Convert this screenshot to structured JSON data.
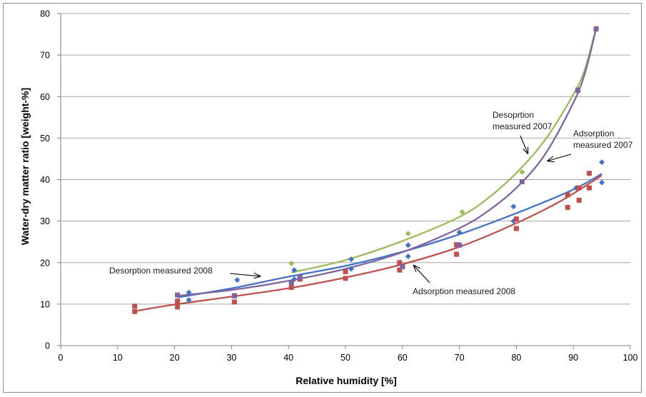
{
  "chart_data": {
    "type": "scatter",
    "title": "",
    "xlabel": "Relative humidity [%]",
    "ylabel": "Water-dry matter ratio [weight-%]",
    "xlim": [
      0,
      100
    ],
    "ylim": [
      0,
      80
    ],
    "xticks": [
      "0",
      "10",
      "20",
      "30",
      "40",
      "50",
      "60",
      "70",
      "80",
      "90",
      "100"
    ],
    "yticks": [
      "0",
      "10",
      "20",
      "30",
      "40",
      "50",
      "60",
      "70",
      "80"
    ],
    "grid": "horizontal",
    "legend": "none",
    "series": [
      {
        "color": "#4472c4",
        "marker": "diamond",
        "points": [
          [
            22.5,
            11.0
          ],
          [
            22.5,
            12.8
          ],
          [
            31,
            15.8
          ],
          [
            41,
            16.0
          ],
          [
            41,
            18.2
          ],
          [
            51,
            18.5
          ],
          [
            51,
            20.8
          ],
          [
            61,
            21.5
          ],
          [
            61,
            24.2
          ],
          [
            70,
            24.3
          ],
          [
            70,
            27.3
          ],
          [
            79.5,
            30.0
          ],
          [
            79.5,
            33.5
          ],
          [
            90.5,
            38.0
          ],
          [
            95,
            39.3
          ],
          [
            95,
            44.2
          ]
        ],
        "trendline": [
          [
            20.5,
            11.6
          ],
          [
            30,
            13.8
          ],
          [
            40,
            16.6
          ],
          [
            50,
            19.2
          ],
          [
            60,
            22.6
          ],
          [
            70,
            26.8
          ],
          [
            80,
            31.9
          ],
          [
            90,
            37.6
          ],
          [
            95,
            41.4
          ]
        ]
      },
      {
        "color": "#c0504d",
        "marker": "square",
        "points": [
          [
            13,
            8.2
          ],
          [
            13,
            9.5
          ],
          [
            20.5,
            9.3
          ],
          [
            20.5,
            10.7
          ],
          [
            30.5,
            10.5
          ],
          [
            30.5,
            12.0
          ],
          [
            40.5,
            14.0
          ],
          [
            42,
            16.0
          ],
          [
            50,
            16.2
          ],
          [
            50,
            17.8
          ],
          [
            59.5,
            18.2
          ],
          [
            59.5,
            20.0
          ],
          [
            69.5,
            22.0
          ],
          [
            69.5,
            24.3
          ],
          [
            80,
            28.2
          ],
          [
            80,
            30.5
          ],
          [
            89,
            33.3
          ],
          [
            89,
            36.3
          ],
          [
            91,
            35.0
          ],
          [
            91,
            38.0
          ],
          [
            92.8,
            38.0
          ],
          [
            92.8,
            41.5
          ]
        ],
        "trendline": [
          [
            13,
            8.3
          ],
          [
            20,
            9.9
          ],
          [
            30,
            11.8
          ],
          [
            40,
            13.8
          ],
          [
            50,
            16.4
          ],
          [
            60,
            19.6
          ],
          [
            70,
            23.8
          ],
          [
            80,
            29.5
          ],
          [
            88,
            35.0
          ],
          [
            95,
            41.0
          ]
        ]
      },
      {
        "color": "#9bbb59",
        "marker": "diamond",
        "points": [
          [
            40.5,
            19.8
          ],
          [
            61,
            27.0
          ],
          [
            70.5,
            32.2
          ],
          [
            81,
            41.8
          ],
          [
            90.8,
            62.0
          ],
          [
            94,
            76.5
          ]
        ],
        "trendline": [
          [
            40.5,
            17.6
          ],
          [
            50,
            20.6
          ],
          [
            60,
            25.2
          ],
          [
            70,
            31.0
          ],
          [
            75,
            35.5
          ],
          [
            80,
            41.6
          ],
          [
            85,
            49.5
          ],
          [
            90,
            60.5
          ],
          [
            92,
            66.5
          ],
          [
            94,
            76.5
          ]
        ]
      },
      {
        "color": "#8064a2",
        "marker": "square",
        "points": [
          [
            20.5,
            12.2
          ],
          [
            30.5,
            12.0
          ],
          [
            40.5,
            15.2
          ],
          [
            42,
            16.5
          ],
          [
            60,
            19.0
          ],
          [
            70,
            24.2
          ],
          [
            81,
            39.5
          ],
          [
            90.8,
            61.5
          ],
          [
            94,
            76.3
          ]
        ],
        "trendline": [
          [
            20.5,
            12.0
          ],
          [
            30,
            13.4
          ],
          [
            40,
            15.6
          ],
          [
            50,
            18.5
          ],
          [
            60,
            22.5
          ],
          [
            70,
            28.3
          ],
          [
            75,
            32.4
          ],
          [
            80,
            38.0
          ],
          [
            85,
            46.0
          ],
          [
            90,
            58.5
          ],
          [
            92,
            65.5
          ],
          [
            94,
            76.3
          ]
        ]
      }
    ],
    "annotations": [
      {
        "lines": [
          "Desoprtion",
          "measured 2007"
        ],
        "arrow_to": [
          82,
          46.3
        ]
      },
      {
        "lines": [
          "Adsorption",
          "measured 2007"
        ],
        "arrow_to": [
          85.5,
          44.5
        ]
      },
      {
        "lines": [
          "Desorption measured 2008"
        ],
        "arrow_to": [
          35,
          16.7
        ]
      },
      {
        "lines": [
          "Adsorption measured 2008"
        ],
        "arrow_to": [
          62,
          19.3
        ]
      }
    ]
  }
}
